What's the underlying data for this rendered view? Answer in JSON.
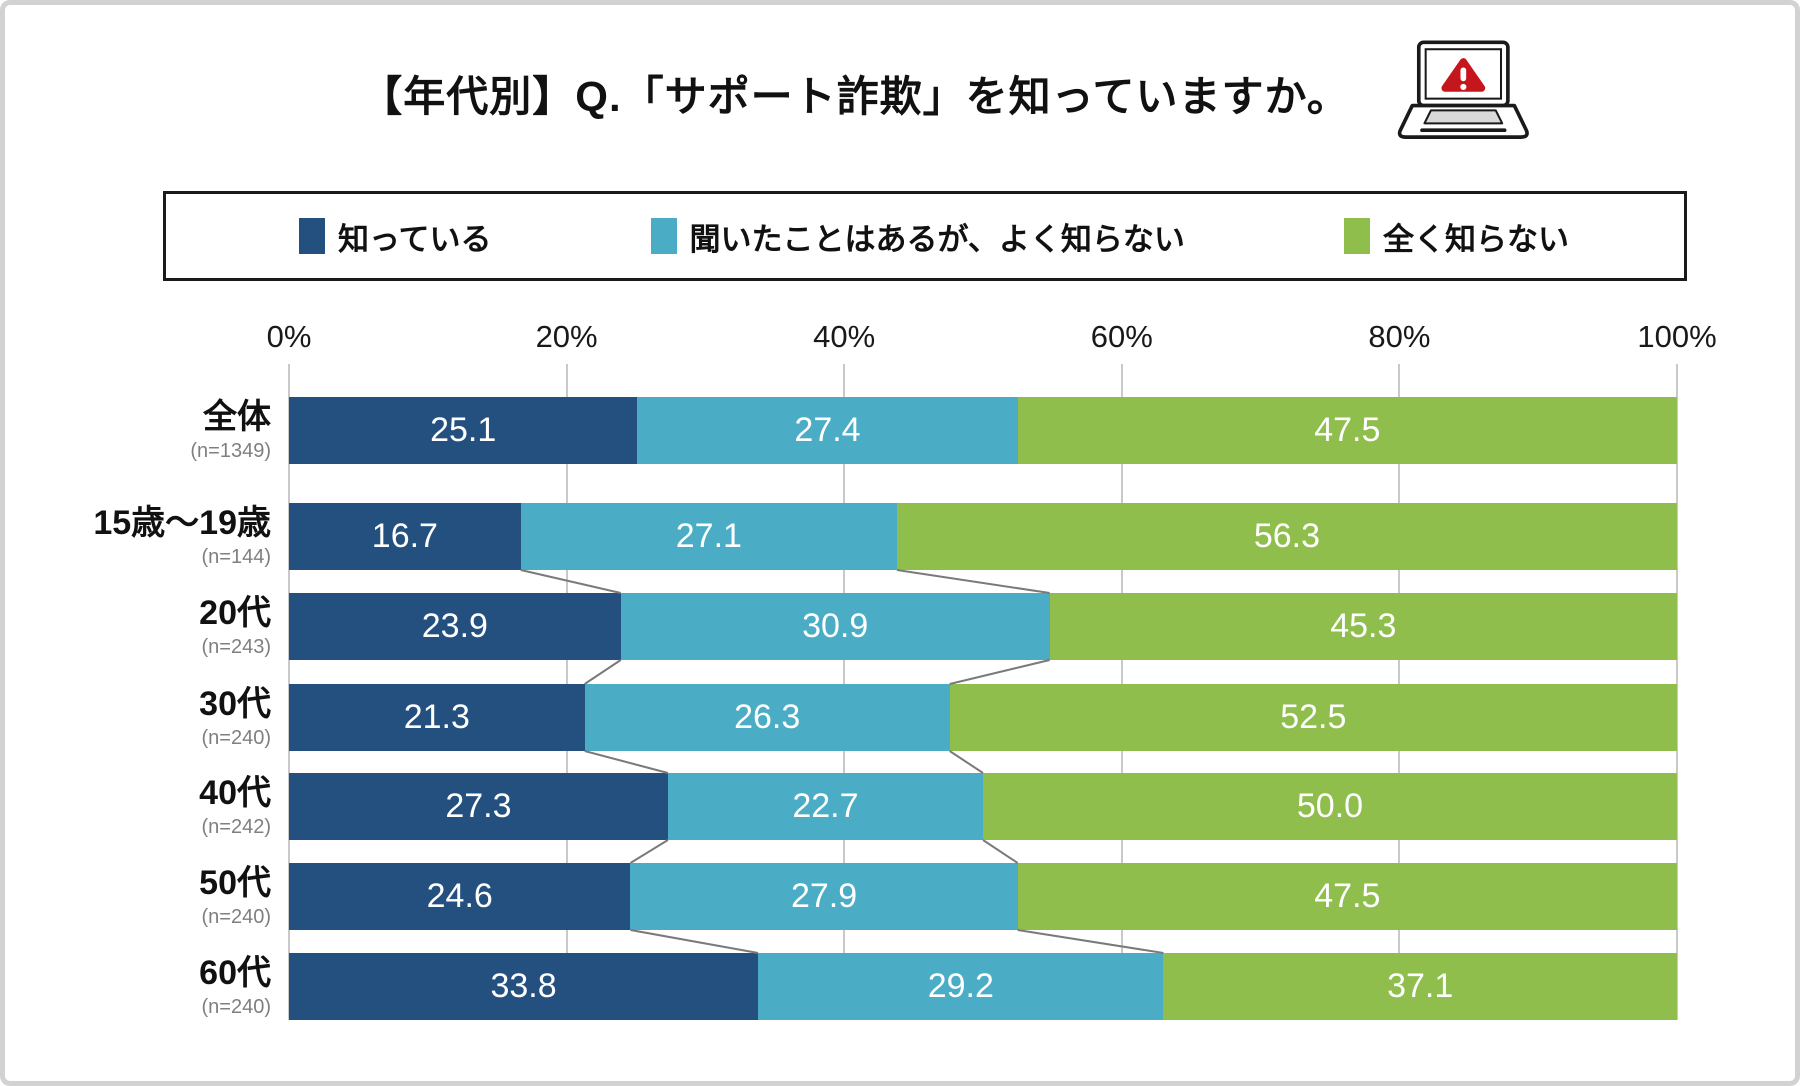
{
  "title": {
    "prefix": "【年代別】Q.",
    "highlight": "「サポート詐欺」",
    "suffix": "を知っていますか。"
  },
  "icon": {
    "name": "laptop-warning-icon",
    "alert_color": "#c5161d"
  },
  "chart_data": {
    "type": "bar",
    "orientation": "horizontal",
    "stacked": true,
    "title": "【年代別】Q.「サポート詐欺」を知っていますか。",
    "series_names": [
      "知っている",
      "聞いたことはあるが、よく知らない",
      "全く知らない"
    ],
    "colors": [
      "#24507F",
      "#4AACC5",
      "#8FBE4D"
    ],
    "x_axis": {
      "ticks": [
        "0%",
        "20%",
        "40%",
        "60%",
        "80%",
        "100%"
      ],
      "range": [
        0,
        100
      ],
      "grid": true
    },
    "legend_position": "top",
    "value_label_color": "#ffffff",
    "rows": [
      {
        "category": "全体",
        "n": "(n=1349)",
        "values": [
          25.1,
          27.4,
          47.5
        ]
      },
      {
        "category": "15歳〜19歳",
        "n": "(n=144)",
        "values": [
          16.7,
          27.1,
          56.3
        ]
      },
      {
        "category": "20代",
        "n": "(n=243)",
        "values": [
          23.9,
          30.9,
          45.3
        ]
      },
      {
        "category": "30代",
        "n": "(n=240)",
        "values": [
          21.3,
          26.3,
          52.5
        ]
      },
      {
        "category": "40代",
        "n": "(n=242)",
        "values": [
          27.3,
          22.7,
          50.0
        ]
      },
      {
        "category": "50代",
        "n": "(n=240)",
        "values": [
          24.6,
          27.9,
          47.5
        ]
      },
      {
        "category": "60代",
        "n": "(n=240)",
        "values": [
          33.8,
          29.2,
          37.1
        ]
      }
    ],
    "connectors": "between consecutive age-group rows only (not between 全体 and 15歳〜19歳)",
    "grid_color": "#c9c9c9",
    "connector_color": "#7a7a7a"
  }
}
